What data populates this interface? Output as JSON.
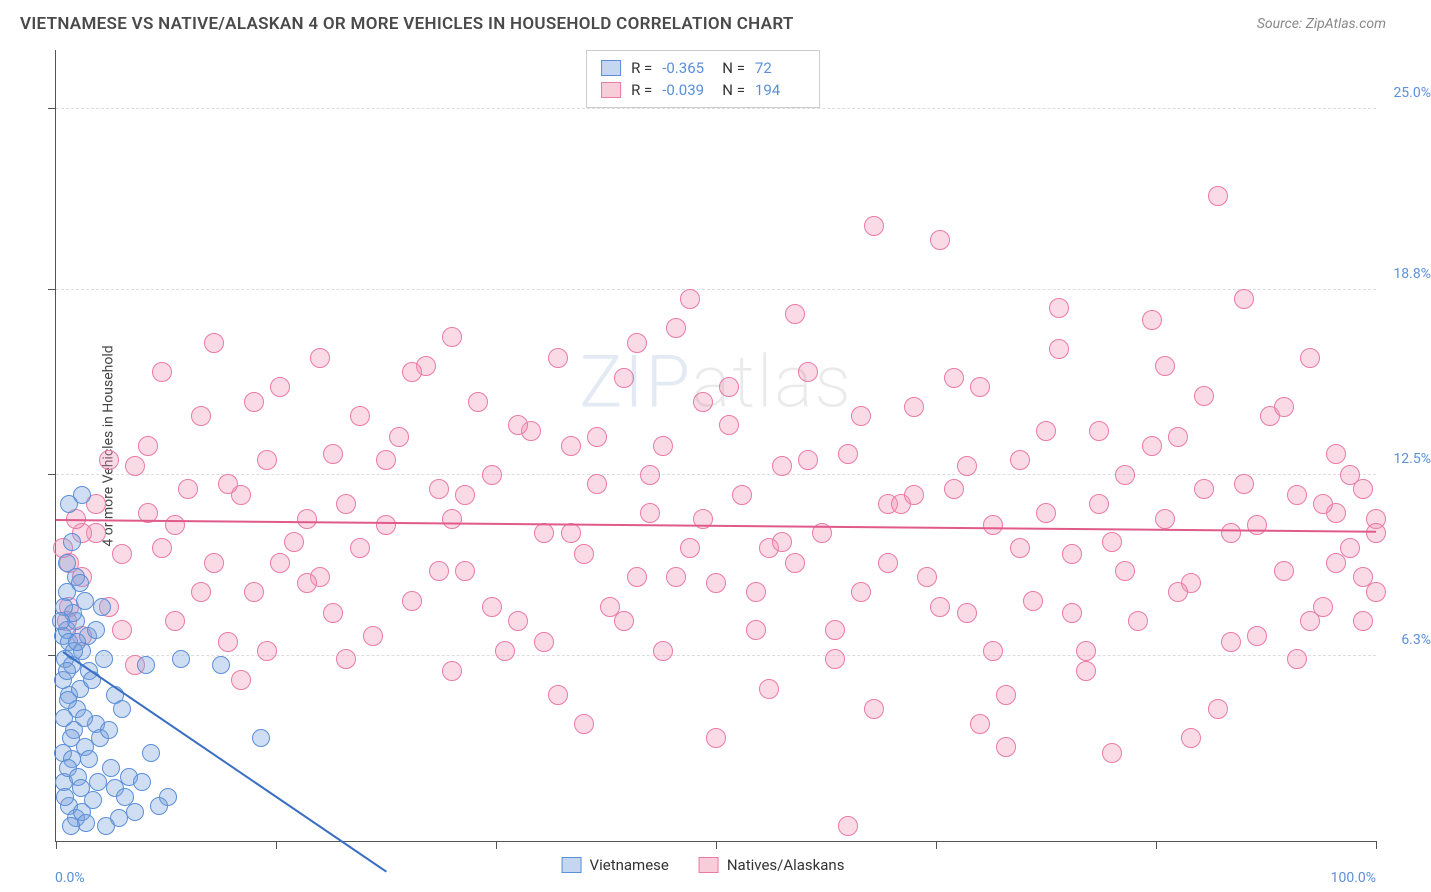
{
  "title": "VIETNAMESE VS NATIVE/ALASKAN 4 OR MORE VEHICLES IN HOUSEHOLD CORRELATION CHART",
  "source": "Source: ZipAtlas.com",
  "watermark": {
    "part1": "ZIP",
    "part2": "atlas"
  },
  "y_axis_title": "4 or more Vehicles in Household",
  "x_axis": {
    "min_label": "0.0%",
    "max_label": "100.0%",
    "min": 0,
    "max": 100,
    "tick_positions": [
      0,
      16.67,
      33.33,
      50,
      66.67,
      83.33,
      100
    ]
  },
  "y_axis": {
    "min": 0,
    "max": 27,
    "ticks": [
      {
        "value": 6.3,
        "label": "6.3%"
      },
      {
        "value": 12.5,
        "label": "12.5%"
      },
      {
        "value": 18.8,
        "label": "18.8%"
      },
      {
        "value": 25.0,
        "label": "25.0%"
      }
    ]
  },
  "series": {
    "vietnamese": {
      "label": "Vietnamese",
      "fill": "rgba(120,160,220,0.35)",
      "stroke": "#5b8fd8",
      "swatch_fill": "#c5d7f0",
      "swatch_border": "#5b8fd8",
      "marker_radius": 9,
      "stats": {
        "R": "-0.365",
        "N": "72"
      },
      "trend": {
        "x1": 0.5,
        "y1": 6.5,
        "x2": 25,
        "y2": -1.0,
        "color": "#3a6fc4",
        "width": 2
      }
    },
    "natives": {
      "label": "Natives/Alaskans",
      "fill": "rgba(240,150,180,0.35)",
      "stroke": "#e97ba5",
      "swatch_fill": "#f7cdda",
      "swatch_border": "#e97ba5",
      "marker_radius": 10,
      "stats": {
        "R": "-0.039",
        "N": "194"
      },
      "trend": {
        "x1": 0,
        "y1": 11.0,
        "x2": 100,
        "y2": 10.6,
        "color": "#e05a8a",
        "width": 2
      }
    }
  },
  "data": {
    "vietnamese": [
      [
        0.5,
        7.0
      ],
      [
        0.8,
        7.2
      ],
      [
        1.0,
        6.8
      ],
      [
        1.2,
        6.0
      ],
      [
        1.5,
        7.5
      ],
      [
        1.0,
        5.0
      ],
      [
        0.6,
        4.2
      ],
      [
        1.4,
        3.8
      ],
      [
        2.0,
        6.5
      ],
      [
        2.5,
        5.8
      ],
      [
        0.8,
        8.5
      ],
      [
        1.6,
        4.5
      ],
      [
        0.5,
        3.0
      ],
      [
        1.2,
        2.8
      ],
      [
        2.2,
        3.2
      ],
      [
        3.0,
        4.0
      ],
      [
        1.8,
        5.2
      ],
      [
        0.7,
        6.2
      ],
      [
        1.3,
        7.8
      ],
      [
        2.4,
        7.0
      ],
      [
        3.6,
        6.2
      ],
      [
        4.5,
        1.8
      ],
      [
        5.2,
        1.5
      ],
      [
        1.0,
        1.2
      ],
      [
        1.5,
        0.8
      ],
      [
        2.0,
        1.0
      ],
      [
        0.6,
        2.0
      ],
      [
        0.9,
        2.5
      ],
      [
        1.1,
        3.5
      ],
      [
        1.7,
        2.2
      ],
      [
        2.3,
        0.6
      ],
      [
        2.8,
        1.4
      ],
      [
        3.2,
        2.0
      ],
      [
        3.8,
        0.5
      ],
      [
        4.2,
        2.5
      ],
      [
        4.8,
        0.8
      ],
      [
        5.5,
        2.2
      ],
      [
        6.0,
        1.0
      ],
      [
        6.8,
        6.0
      ],
      [
        7.2,
        3.0
      ],
      [
        8.5,
        1.5
      ],
      [
        1.0,
        11.5
      ],
      [
        2.0,
        11.8
      ],
      [
        9.5,
        6.2
      ],
      [
        12.5,
        6.0
      ],
      [
        15.5,
        3.5
      ],
      [
        0.8,
        9.5
      ],
      [
        1.5,
        9.0
      ],
      [
        0.6,
        8.0
      ],
      [
        1.2,
        10.2
      ],
      [
        3.5,
        8.0
      ],
      [
        1.8,
        8.8
      ],
      [
        0.5,
        5.5
      ],
      [
        0.9,
        4.8
      ],
      [
        1.4,
        6.5
      ],
      [
        2.1,
        4.2
      ],
      [
        2.7,
        5.5
      ],
      [
        3.3,
        3.5
      ],
      [
        0.7,
        1.5
      ],
      [
        1.1,
        0.5
      ],
      [
        1.9,
        1.8
      ],
      [
        2.5,
        2.8
      ],
      [
        4.0,
        3.8
      ],
      [
        5.0,
        4.5
      ],
      [
        6.5,
        2.0
      ],
      [
        7.8,
        1.2
      ],
      [
        0.4,
        7.5
      ],
      [
        0.8,
        5.8
      ],
      [
        1.6,
        6.8
      ],
      [
        3.0,
        7.2
      ],
      [
        4.5,
        5.0
      ],
      [
        2.2,
        8.2
      ]
    ],
    "natives": [
      [
        3,
        10.5
      ],
      [
        5,
        9.8
      ],
      [
        7,
        11.2
      ],
      [
        8,
        10.0
      ],
      [
        10,
        12.0
      ],
      [
        12,
        9.5
      ],
      [
        14,
        11.8
      ],
      [
        15,
        8.5
      ],
      [
        16,
        13.0
      ],
      [
        18,
        10.2
      ],
      [
        20,
        9.0
      ],
      [
        22,
        11.5
      ],
      [
        23,
        14.5
      ],
      [
        25,
        10.8
      ],
      [
        26,
        13.8
      ],
      [
        27,
        8.2
      ],
      [
        28,
        16.2
      ],
      [
        30,
        11.0
      ],
      [
        31,
        9.2
      ],
      [
        32,
        15.0
      ],
      [
        33,
        12.5
      ],
      [
        35,
        7.5
      ],
      [
        36,
        14.0
      ],
      [
        37,
        10.5
      ],
      [
        38,
        16.5
      ],
      [
        40,
        9.8
      ],
      [
        41,
        12.2
      ],
      [
        42,
        8.0
      ],
      [
        43,
        15.8
      ],
      [
        45,
        11.2
      ],
      [
        46,
        13.5
      ],
      [
        47,
        17.5
      ],
      [
        48,
        10.0
      ],
      [
        50,
        8.8
      ],
      [
        51,
        14.2
      ],
      [
        52,
        11.8
      ],
      [
        53,
        7.2
      ],
      [
        55,
        12.8
      ],
      [
        56,
        9.5
      ],
      [
        57,
        16.0
      ],
      [
        58,
        10.5
      ],
      [
        60,
        13.2
      ],
      [
        61,
        8.5
      ],
      [
        62,
        21.0
      ],
      [
        63,
        11.5
      ],
      [
        65,
        14.8
      ],
      [
        66,
        9.0
      ],
      [
        67,
        20.5
      ],
      [
        68,
        12.0
      ],
      [
        69,
        7.8
      ],
      [
        70,
        15.5
      ],
      [
        71,
        10.8
      ],
      [
        72,
        5.0
      ],
      [
        73,
        13.0
      ],
      [
        74,
        8.2
      ],
      [
        75,
        11.2
      ],
      [
        76,
        16.8
      ],
      [
        77,
        9.8
      ],
      [
        78,
        6.5
      ],
      [
        79,
        14.0
      ],
      [
        80,
        10.2
      ],
      [
        81,
        12.5
      ],
      [
        82,
        7.5
      ],
      [
        83,
        17.8
      ],
      [
        84,
        11.0
      ],
      [
        85,
        13.8
      ],
      [
        86,
        8.8
      ],
      [
        87,
        15.2
      ],
      [
        88,
        22.0
      ],
      [
        89,
        10.5
      ],
      [
        90,
        12.2
      ],
      [
        91,
        7.0
      ],
      [
        92,
        14.5
      ],
      [
        93,
        9.2
      ],
      [
        94,
        11.8
      ],
      [
        95,
        16.5
      ],
      [
        96,
        8.0
      ],
      [
        97,
        13.2
      ],
      [
        98,
        10.0
      ],
      [
        99,
        12.0
      ],
      [
        4,
        8.0
      ],
      [
        6,
        12.8
      ],
      [
        9,
        7.5
      ],
      [
        11,
        14.5
      ],
      [
        13,
        6.8
      ],
      [
        17,
        15.5
      ],
      [
        19,
        8.8
      ],
      [
        21,
        13.2
      ],
      [
        24,
        7.0
      ],
      [
        29,
        12.0
      ],
      [
        34,
        6.5
      ],
      [
        39,
        13.5
      ],
      [
        44,
        9.0
      ],
      [
        49,
        15.0
      ],
      [
        54,
        10.0
      ],
      [
        59,
        6.2
      ],
      [
        64,
        11.5
      ],
      [
        2,
        9.0
      ],
      [
        3,
        11.5
      ],
      [
        5,
        7.2
      ],
      [
        7,
        13.5
      ],
      [
        9,
        10.8
      ],
      [
        11,
        8.5
      ],
      [
        13,
        12.2
      ],
      [
        15,
        15.0
      ],
      [
        17,
        9.5
      ],
      [
        19,
        11.0
      ],
      [
        21,
        7.8
      ],
      [
        23,
        10.0
      ],
      [
        25,
        13.0
      ],
      [
        27,
        16.0
      ],
      [
        29,
        9.2
      ],
      [
        31,
        11.8
      ],
      [
        33,
        8.0
      ],
      [
        35,
        14.2
      ],
      [
        37,
        6.8
      ],
      [
        39,
        10.5
      ],
      [
        41,
        13.8
      ],
      [
        43,
        7.5
      ],
      [
        45,
        12.5
      ],
      [
        47,
        9.0
      ],
      [
        49,
        11.0
      ],
      [
        51,
        15.5
      ],
      [
        53,
        8.5
      ],
      [
        55,
        10.2
      ],
      [
        57,
        13.0
      ],
      [
        59,
        7.2
      ],
      [
        61,
        14.5
      ],
      [
        63,
        9.5
      ],
      [
        65,
        11.8
      ],
      [
        67,
        8.0
      ],
      [
        69,
        12.8
      ],
      [
        71,
        6.5
      ],
      [
        73,
        10.0
      ],
      [
        75,
        14.0
      ],
      [
        77,
        7.8
      ],
      [
        79,
        11.5
      ],
      [
        81,
        9.2
      ],
      [
        83,
        13.5
      ],
      [
        85,
        8.5
      ],
      [
        87,
        12.0
      ],
      [
        89,
        6.8
      ],
      [
        91,
        10.8
      ],
      [
        93,
        14.8
      ],
      [
        95,
        7.5
      ],
      [
        97,
        11.2
      ],
      [
        99,
        9.0
      ],
      [
        6,
        6.0
      ],
      [
        14,
        5.5
      ],
      [
        22,
        6.2
      ],
      [
        30,
        5.8
      ],
      [
        38,
        5.0
      ],
      [
        46,
        6.5
      ],
      [
        54,
        5.2
      ],
      [
        62,
        4.5
      ],
      [
        70,
        4.0
      ],
      [
        78,
        5.8
      ],
      [
        86,
        3.5
      ],
      [
        94,
        6.2
      ],
      [
        100,
        11.0
      ],
      [
        100,
        10.5
      ],
      [
        100,
        8.5
      ],
      [
        99,
        7.5
      ],
      [
        98,
        12.5
      ],
      [
        97,
        9.5
      ],
      [
        96,
        11.5
      ],
      [
        2,
        7.0
      ],
      [
        4,
        13.0
      ],
      [
        8,
        16.0
      ],
      [
        12,
        17.0
      ],
      [
        16,
        6.5
      ],
      [
        60,
        0.5
      ],
      [
        50,
        3.5
      ],
      [
        40,
        4.0
      ],
      [
        80,
        3.0
      ],
      [
        88,
        4.5
      ],
      [
        72,
        3.2
      ],
      [
        56,
        18.0
      ],
      [
        48,
        18.5
      ],
      [
        76,
        18.2
      ],
      [
        90,
        18.5
      ],
      [
        30,
        17.2
      ],
      [
        20,
        16.5
      ],
      [
        44,
        17.0
      ],
      [
        68,
        15.8
      ],
      [
        84,
        16.2
      ],
      [
        2,
        10.5
      ],
      [
        1,
        9.5
      ],
      [
        1,
        8.0
      ],
      [
        1.5,
        11.0
      ],
      [
        0.8,
        7.5
      ],
      [
        0.5,
        10.0
      ]
    ]
  }
}
